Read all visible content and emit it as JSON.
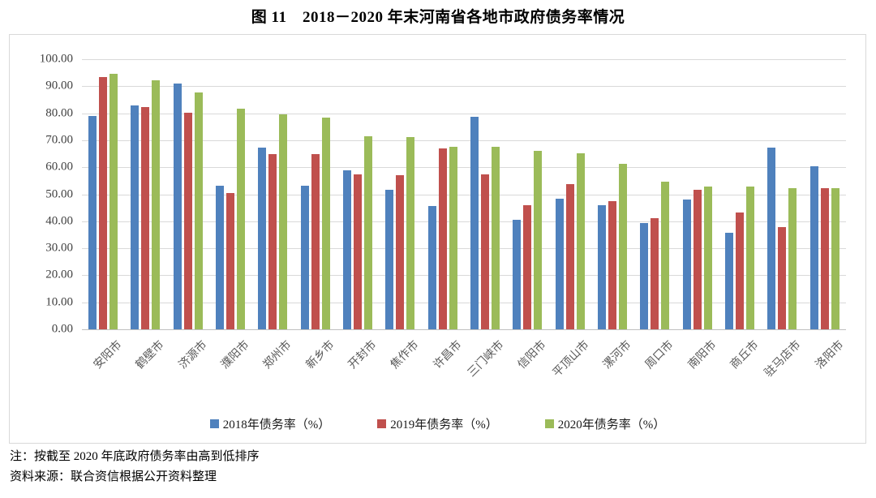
{
  "title": "图 11　2018－2020 年末河南省各地市政府债务率情况",
  "chart_data": {
    "type": "bar",
    "title": "图 11　2018－2020 年末河南省各地市政府债务率情况",
    "categories": [
      "安阳市",
      "鹤壁市",
      "济源市",
      "濮阳市",
      "郑州市",
      "新乡市",
      "开封市",
      "焦作市",
      "许昌市",
      "三门峡市",
      "信阳市",
      "平顶山市",
      "漯河市",
      "周口市",
      "南阳市",
      "商丘市",
      "驻马店市",
      "洛阳市"
    ],
    "series": [
      {
        "name": "2018年债务率（%）",
        "color": "#4F81BD",
        "values": [
          78.9,
          82.9,
          91.1,
          53.2,
          67.4,
          53.1,
          58.8,
          51.6,
          45.7,
          78.8,
          40.5,
          48.5,
          45.9,
          39.4,
          48.0,
          35.8,
          67.3,
          60.5
        ]
      },
      {
        "name": "2019年债务率（%）",
        "color": "#C0504D",
        "values": [
          93.5,
          82.3,
          80.3,
          50.5,
          64.8,
          65.0,
          57.5,
          57.2,
          66.9,
          57.5,
          46.1,
          53.7,
          47.5,
          41.2,
          51.8,
          43.2,
          37.9,
          52.3
        ]
      },
      {
        "name": "2020年债务率（%）",
        "color": "#9BBB59",
        "values": [
          94.5,
          92.2,
          87.7,
          81.7,
          79.5,
          78.5,
          71.5,
          71.2,
          67.7,
          67.7,
          66.2,
          65.1,
          61.2,
          54.8,
          52.9,
          52.9,
          52.4,
          52.2
        ]
      }
    ],
    "ylim": [
      0,
      100
    ],
    "y_tick_labels": [
      "100.00",
      "90.00",
      "80.00",
      "70.00",
      "60.00",
      "50.00",
      "40.00",
      "30.00",
      "20.00",
      "10.00",
      "0.00"
    ],
    "xlabel": "",
    "ylabel": "",
    "grid": true,
    "legend_position": "bottom",
    "colors": {
      "gridline": "#d9d9d9",
      "zero_line": "#bfbfbf",
      "frame_border": "#d9d9d9",
      "axis_text": "#404040",
      "category_text": "#595959"
    }
  },
  "notes": {
    "line1": "注：按截至 2020 年底政府债务率由高到低排序",
    "line2": "资料来源：联合资信根据公开资料整理"
  }
}
